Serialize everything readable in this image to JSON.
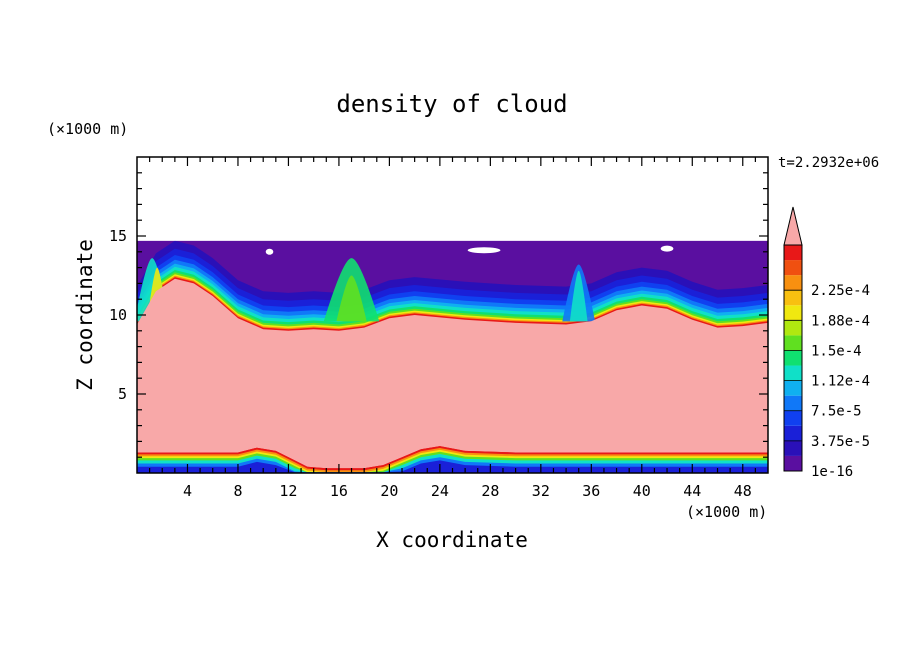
{
  "chart_data": {
    "type": "heatmap",
    "title": "density of cloud",
    "xlabel": "X coordinate",
    "ylabel": "Z coordinate",
    "x_unit": "(×1000 m)",
    "y_unit": "(×1000 m)",
    "time_label": "t=2.2932e+06",
    "xlim": [
      0,
      50
    ],
    "ylim": [
      0,
      20
    ],
    "x_ticks": [
      4,
      8,
      12,
      16,
      20,
      24,
      28,
      32,
      36,
      40,
      44,
      48
    ],
    "y_ticks": [
      5,
      10,
      15
    ],
    "colorbar": {
      "labels": [
        "1e-16",
        "3.75e-5",
        "7.5e-5",
        "1.12e-4",
        "1.5e-4",
        "1.88e-4",
        "2.25e-4"
      ],
      "levels": [
        "#5a0fa0",
        "#2a10b8",
        "#1a20d8",
        "#1040f0",
        "#1078f8",
        "#10b0f0",
        "#10e0c8",
        "#10e070",
        "#60e020",
        "#b0e810",
        "#f0e810",
        "#f8c010",
        "#f89010",
        "#f05010",
        "#e81818"
      ],
      "overflow_color": "#f8a8a8"
    },
    "cloud_top_z": 14.7,
    "upper_edge_z": [
      [
        0,
        9.4
      ],
      [
        1.5,
        11.5
      ],
      [
        3,
        12.3
      ],
      [
        4.5,
        12.0
      ],
      [
        6,
        11.2
      ],
      [
        8,
        9.8
      ],
      [
        10,
        9.1
      ],
      [
        12,
        9.0
      ],
      [
        14,
        9.1
      ],
      [
        16,
        9.0
      ],
      [
        18,
        9.2
      ],
      [
        20,
        9.8
      ],
      [
        22,
        10.0
      ],
      [
        26,
        9.7
      ],
      [
        30,
        9.5
      ],
      [
        34,
        9.4
      ],
      [
        36,
        9.6
      ],
      [
        38,
        10.3
      ],
      [
        40,
        10.6
      ],
      [
        42,
        10.4
      ],
      [
        44,
        9.7
      ],
      [
        46,
        9.2
      ],
      [
        48,
        9.3
      ],
      [
        50,
        9.5
      ]
    ],
    "lower_edge_z": [
      [
        0,
        1.3
      ],
      [
        8,
        1.3
      ],
      [
        9.5,
        1.6
      ],
      [
        11,
        1.4
      ],
      [
        12.5,
        0.8
      ],
      [
        13.5,
        0.4
      ],
      [
        15,
        0.3
      ],
      [
        18,
        0.3
      ],
      [
        19.5,
        0.5
      ],
      [
        21,
        1.0
      ],
      [
        22.5,
        1.5
      ],
      [
        24,
        1.7
      ],
      [
        26,
        1.4
      ],
      [
        30,
        1.3
      ],
      [
        50,
        1.3
      ]
    ]
  }
}
